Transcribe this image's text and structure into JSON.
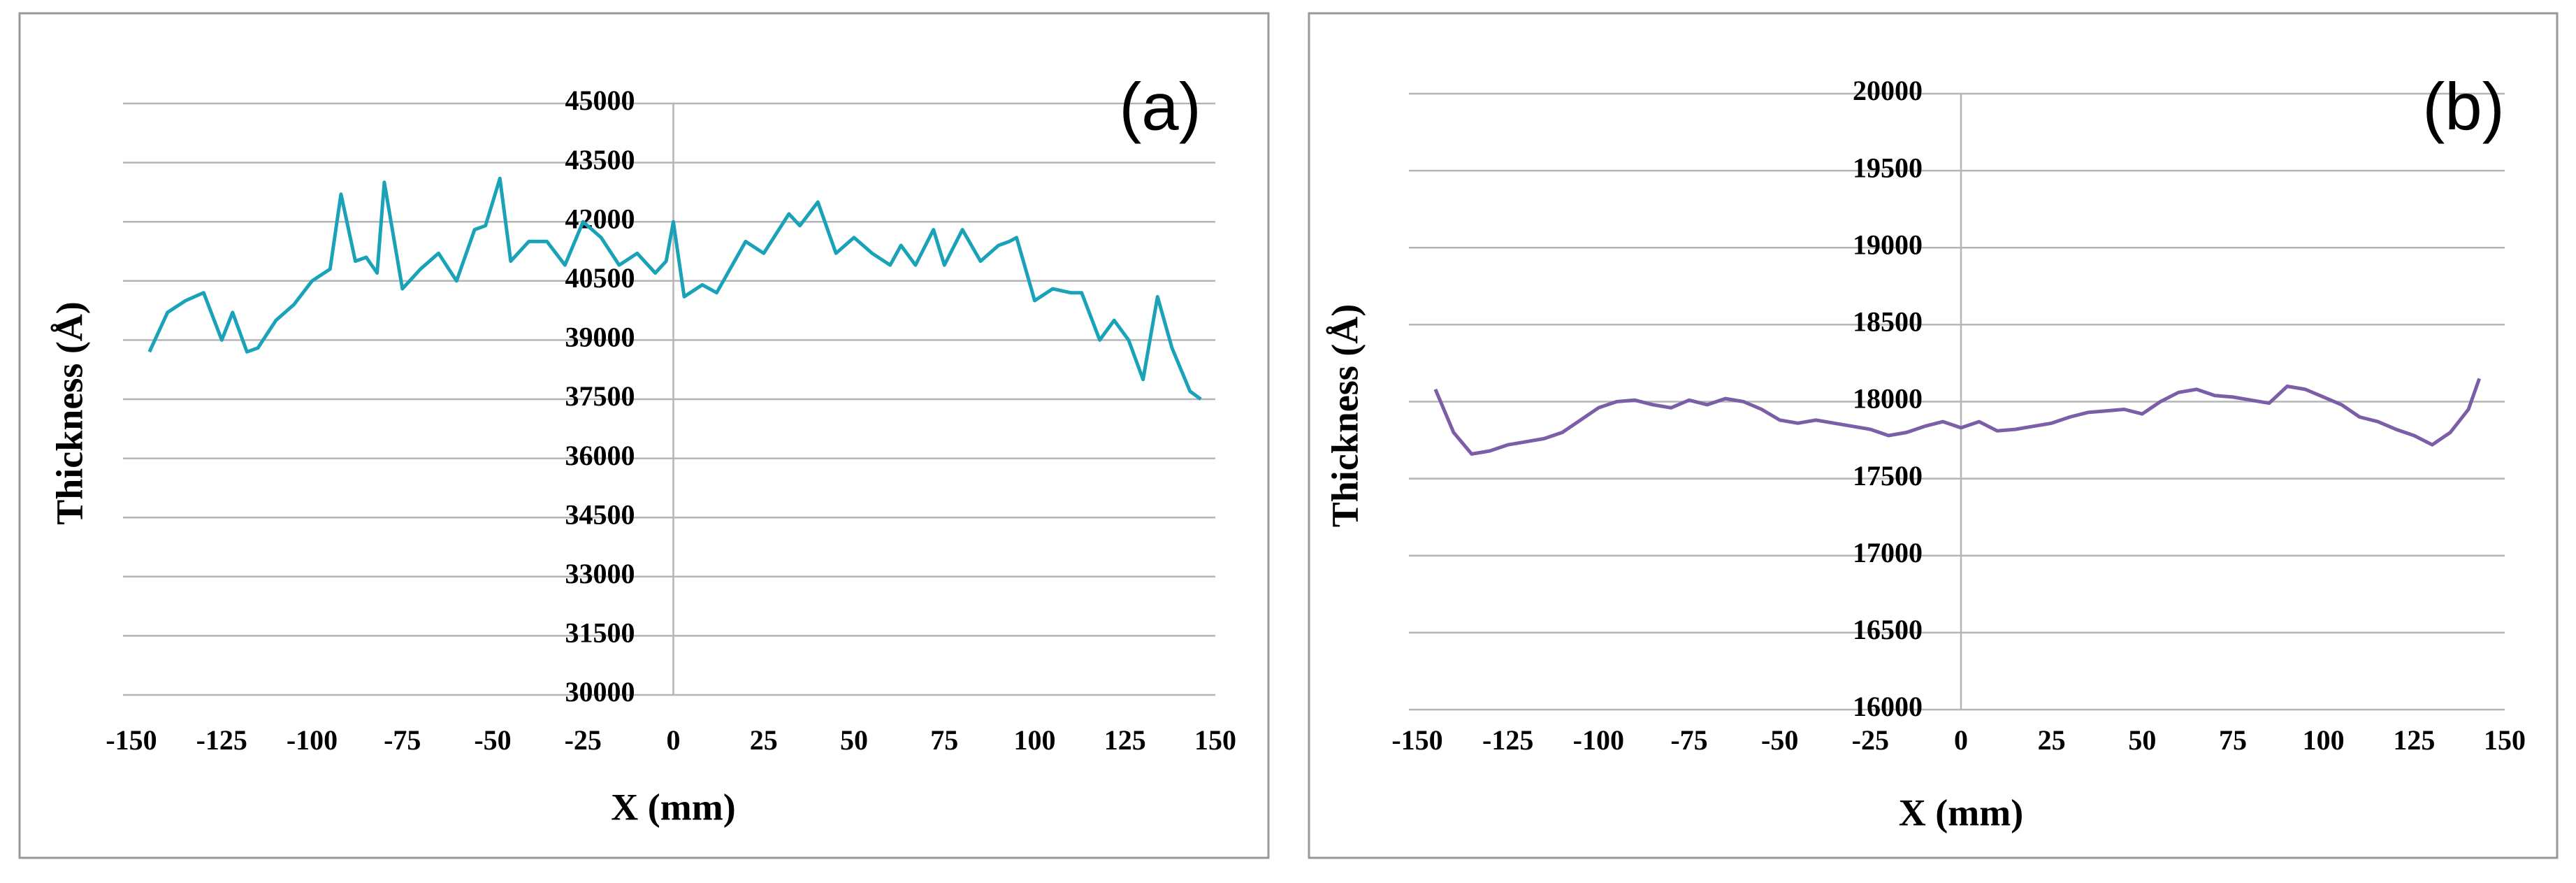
{
  "chart_data": [
    {
      "type": "line",
      "annotation": "(a)",
      "xlabel": "X (mm)",
      "ylabel": "Thickness (Å)",
      "color": "#1aa3b8",
      "grid": true,
      "xlim": [
        -150,
        150
      ],
      "xticks": [
        -150,
        -125,
        -100,
        -75,
        -50,
        -25,
        0,
        25,
        50,
        75,
        100,
        125,
        150
      ],
      "ylim": [
        30000,
        45000
      ],
      "yticks": [
        30000,
        31500,
        33000,
        34500,
        36000,
        37500,
        39000,
        40500,
        42000,
        43500,
        45000
      ],
      "x": [
        -145,
        -140,
        -135,
        -130,
        -125,
        -122,
        -118,
        -115,
        -110,
        -105,
        -100,
        -95,
        -92,
        -88,
        -85,
        -82,
        -80,
        -75,
        -70,
        -65,
        -60,
        -55,
        -52,
        -48,
        -45,
        -40,
        -35,
        -30,
        -25,
        -20,
        -15,
        -10,
        -5,
        -2,
        0,
        3,
        8,
        12,
        20,
        25,
        32,
        35,
        40,
        45,
        50,
        55,
        60,
        63,
        67,
        72,
        75,
        80,
        85,
        90,
        93,
        95,
        100,
        105,
        110,
        113,
        118,
        122,
        126,
        130,
        134,
        138,
        143,
        146
      ],
      "values": [
        38700,
        39700,
        40000,
        40200,
        39000,
        39700,
        38700,
        38800,
        39500,
        39900,
        40500,
        40800,
        42700,
        41000,
        41100,
        40700,
        43000,
        40300,
        40800,
        41200,
        40500,
        41800,
        41900,
        43100,
        41000,
        41500,
        41500,
        40900,
        42000,
        41600,
        40900,
        41200,
        40700,
        41000,
        42000,
        40100,
        40400,
        40200,
        41500,
        41200,
        42200,
        41900,
        42500,
        41200,
        41600,
        41200,
        40900,
        41400,
        40900,
        41800,
        40900,
        41800,
        41000,
        41400,
        41500,
        41600,
        40000,
        40300,
        40200,
        40200,
        39000,
        39500,
        39000,
        38000,
        40100,
        38800,
        37700,
        37500
      ]
    },
    {
      "type": "line",
      "annotation": "(b)",
      "xlabel": "X (mm)",
      "ylabel": "Thickness (Å)",
      "color": "#7b5ea7",
      "grid": true,
      "xlim": [
        -150,
        150
      ],
      "xticks": [
        -150,
        -125,
        -100,
        -75,
        -50,
        -25,
        0,
        25,
        50,
        75,
        100,
        125,
        150
      ],
      "ylim": [
        16000,
        20000
      ],
      "yticks": [
        16000,
        16500,
        17000,
        17500,
        18000,
        18500,
        19000,
        19500,
        20000
      ],
      "x": [
        -145,
        -140,
        -135,
        -130,
        -125,
        -120,
        -115,
        -110,
        -105,
        -100,
        -95,
        -90,
        -85,
        -80,
        -75,
        -70,
        -65,
        -60,
        -55,
        -50,
        -45,
        -40,
        -35,
        -30,
        -25,
        -20,
        -15,
        -10,
        -5,
        0,
        5,
        10,
        15,
        20,
        25,
        30,
        35,
        40,
        45,
        50,
        55,
        60,
        65,
        70,
        75,
        80,
        85,
        90,
        95,
        100,
        105,
        110,
        115,
        120,
        125,
        130,
        135,
        140,
        143
      ],
      "values": [
        18080,
        17800,
        17660,
        17680,
        17720,
        17740,
        17760,
        17800,
        17880,
        17960,
        18000,
        18010,
        17980,
        17960,
        18010,
        17980,
        18020,
        18000,
        17950,
        17880,
        17860,
        17880,
        17860,
        17840,
        17820,
        17780,
        17800,
        17840,
        17870,
        17830,
        17870,
        17810,
        17820,
        17840,
        17860,
        17900,
        17930,
        17940,
        17950,
        17920,
        18000,
        18060,
        18080,
        18040,
        18030,
        18010,
        17990,
        18100,
        18080,
        18030,
        17980,
        17900,
        17870,
        17820,
        17780,
        17720,
        17800,
        17950,
        18150
      ]
    }
  ]
}
